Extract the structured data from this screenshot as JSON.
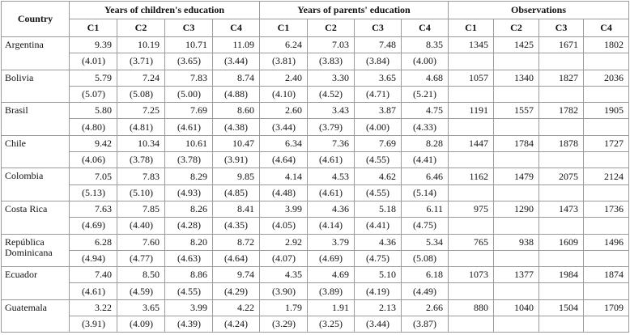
{
  "table": {
    "country_header": "Country",
    "groups": [
      "Years of children's education",
      "Years of parents' education",
      "Observations"
    ],
    "subheaders": [
      "C1",
      "C2",
      "C3",
      "C4",
      "C1",
      "C2",
      "C3",
      "C4",
      "C1",
      "C2",
      "C3",
      "C4"
    ],
    "rows": [
      {
        "country": "Argentina",
        "means": [
          "9.39",
          "10.19",
          "10.71",
          "11.09",
          "6.24",
          "7.03",
          "7.48",
          "8.35",
          "1345",
          "1425",
          "1671",
          "1802"
        ],
        "sds": [
          "(4.01)",
          "(3.71)",
          "(3.65)",
          "(3.44)",
          "(3.81)",
          "(3.83)",
          "(3.84)",
          "(4.00)"
        ]
      },
      {
        "country": "Bolivia",
        "means": [
          "5.79",
          "7.24",
          "7.83",
          "8.74",
          "2.40",
          "3.30",
          "3.65",
          "4.68",
          "1057",
          "1340",
          "1827",
          "2036"
        ],
        "sds": [
          "(5.07)",
          "(5.08)",
          "(5.00)",
          "(4.88)",
          "(4.10)",
          "(4.52)",
          "(4.71)",
          "(5.21)"
        ]
      },
      {
        "country": "Brasil",
        "means": [
          "5.80",
          "7.25",
          "7.69",
          "8.60",
          "2.60",
          "3.43",
          "3.87",
          "4.75",
          "1191",
          "1557",
          "1782",
          "1905"
        ],
        "sds": [
          "(4.80)",
          "(4.81)",
          "(4.61)",
          "(4.38)",
          "(3.44)",
          "(3.79)",
          "(4.00)",
          "(4.33)"
        ]
      },
      {
        "country": "Chile",
        "means": [
          "9.42",
          "10.34",
          "10.61",
          "10.47",
          "6.34",
          "7.36",
          "7.69",
          "8.28",
          "1447",
          "1784",
          "1878",
          "1727"
        ],
        "sds": [
          "(4.06)",
          "(3.78)",
          "(3.78)",
          "(3.91)",
          "(4.64)",
          "(4.61)",
          "(4.55)",
          "(4.41)"
        ]
      },
      {
        "country": "Colombia",
        "means": [
          "7.05",
          "7.83",
          "8.29",
          "9.85",
          "4.14",
          "4.53",
          "4.62",
          "6.46",
          "1162",
          "1479",
          "2075",
          "2124"
        ],
        "sds": [
          "(5.13)",
          "(5.10)",
          "(4.93)",
          "(4.85)",
          "(4.48)",
          "(4.61)",
          "(4.55)",
          "(5.14)"
        ]
      },
      {
        "country": "Costa Rica",
        "means": [
          "7.63",
          "7.85",
          "8.26",
          "8.41",
          "3.99",
          "4.36",
          "5.18",
          "6.11",
          "975",
          "1290",
          "1473",
          "1736"
        ],
        "sds": [
          "(4.69)",
          "(4.40)",
          "(4.28)",
          "(4.35)",
          "(4.05)",
          "(4.14)",
          "(4.41)",
          "(4.75)"
        ]
      },
      {
        "country": "República Dominicana",
        "means": [
          "6.28",
          "7.60",
          "8.20",
          "8.72",
          "2.92",
          "3.79",
          "4.36",
          "5.34",
          "765",
          "938",
          "1609",
          "1496"
        ],
        "sds": [
          "(4.94)",
          "(4.77)",
          "(4.63)",
          "(4.64)",
          "(4.07)",
          "(4.69)",
          "(4.75)",
          "(5.08)"
        ]
      },
      {
        "country": "Ecuador",
        "means": [
          "7.40",
          "8.50",
          "8.86",
          "9.74",
          "4.35",
          "4.69",
          "5.10",
          "6.18",
          "1073",
          "1377",
          "1984",
          "1874"
        ],
        "sds": [
          "(4.61)",
          "(4.59)",
          "(4.55)",
          "(4.29)",
          "(3.90)",
          "(3.89)",
          "(4.19)",
          "(4.49)"
        ]
      },
      {
        "country": "Guatemala",
        "means": [
          "3.22",
          "3.65",
          "3.99",
          "4.22",
          "1.79",
          "1.91",
          "2.13",
          "2.66",
          "880",
          "1040",
          "1504",
          "1709"
        ],
        "sds": [
          "(3.91)",
          "(4.09)",
          "(4.39)",
          "(4.24)",
          "(3.29)",
          "(3.25)",
          "(3.44)",
          "(3.87)"
        ]
      }
    ]
  }
}
